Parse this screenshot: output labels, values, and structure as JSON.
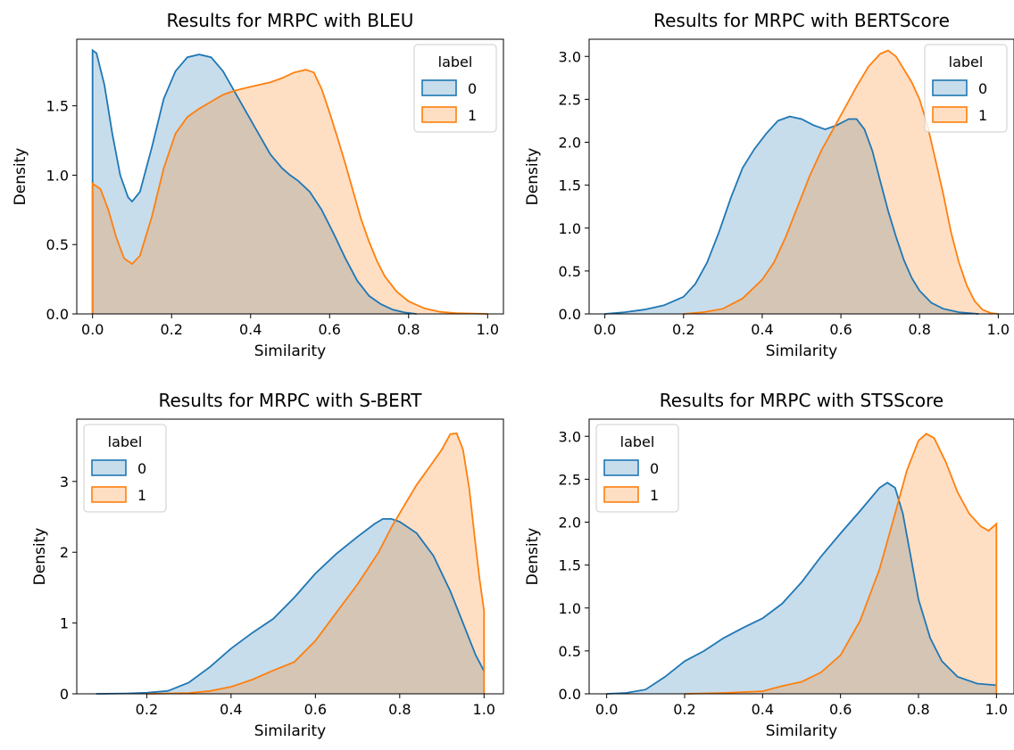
{
  "chart_data": [
    {
      "type": "area",
      "title": "Results for MRPC with BLEU",
      "xlabel": "Similarity",
      "ylabel": "Density",
      "xlim": [
        -0.04,
        1.04
      ],
      "ylim": [
        0,
        1.98
      ],
      "xticks": [
        0.0,
        0.2,
        0.4,
        0.6,
        0.8,
        1.0
      ],
      "xtick_labels": [
        "0.0",
        "0.2",
        "0.4",
        "0.6",
        "0.8",
        "1.0"
      ],
      "yticks": [
        0.0,
        0.5,
        1.0,
        1.5
      ],
      "ytick_labels": [
        "0.0",
        "0.5",
        "1.0",
        "1.5"
      ],
      "legend": {
        "title": "label",
        "position": "upper right",
        "entries": [
          "0",
          "1"
        ]
      },
      "series": [
        {
          "name": "0",
          "color": "#1f77b4",
          "points": [
            [
              0.0,
              0.0
            ],
            [
              0.0,
              1.9
            ],
            [
              0.01,
              1.88
            ],
            [
              0.03,
              1.65
            ],
            [
              0.05,
              1.3
            ],
            [
              0.07,
              1.0
            ],
            [
              0.09,
              0.84
            ],
            [
              0.1,
              0.81
            ],
            [
              0.12,
              0.88
            ],
            [
              0.15,
              1.2
            ],
            [
              0.18,
              1.55
            ],
            [
              0.21,
              1.75
            ],
            [
              0.24,
              1.85
            ],
            [
              0.27,
              1.87
            ],
            [
              0.3,
              1.85
            ],
            [
              0.33,
              1.75
            ],
            [
              0.36,
              1.6
            ],
            [
              0.39,
              1.45
            ],
            [
              0.42,
              1.3
            ],
            [
              0.45,
              1.15
            ],
            [
              0.48,
              1.05
            ],
            [
              0.5,
              1.0
            ],
            [
              0.52,
              0.96
            ],
            [
              0.55,
              0.88
            ],
            [
              0.58,
              0.75
            ],
            [
              0.61,
              0.58
            ],
            [
              0.64,
              0.4
            ],
            [
              0.67,
              0.24
            ],
            [
              0.7,
              0.13
            ],
            [
              0.73,
              0.07
            ],
            [
              0.76,
              0.03
            ],
            [
              0.79,
              0.01
            ],
            [
              0.82,
              0.0
            ]
          ]
        },
        {
          "name": "1",
          "color": "#ff7f0e",
          "points": [
            [
              0.0,
              0.0
            ],
            [
              0.0,
              0.94
            ],
            [
              0.02,
              0.9
            ],
            [
              0.04,
              0.75
            ],
            [
              0.06,
              0.55
            ],
            [
              0.08,
              0.4
            ],
            [
              0.1,
              0.36
            ],
            [
              0.12,
              0.42
            ],
            [
              0.15,
              0.7
            ],
            [
              0.18,
              1.05
            ],
            [
              0.21,
              1.3
            ],
            [
              0.24,
              1.42
            ],
            [
              0.27,
              1.48
            ],
            [
              0.3,
              1.53
            ],
            [
              0.33,
              1.58
            ],
            [
              0.36,
              1.61
            ],
            [
              0.39,
              1.63
            ],
            [
              0.42,
              1.65
            ],
            [
              0.45,
              1.67
            ],
            [
              0.48,
              1.7
            ],
            [
              0.51,
              1.74
            ],
            [
              0.54,
              1.76
            ],
            [
              0.56,
              1.74
            ],
            [
              0.58,
              1.62
            ],
            [
              0.6,
              1.45
            ],
            [
              0.62,
              1.27
            ],
            [
              0.64,
              1.08
            ],
            [
              0.66,
              0.88
            ],
            [
              0.68,
              0.68
            ],
            [
              0.7,
              0.52
            ],
            [
              0.72,
              0.38
            ],
            [
              0.74,
              0.27
            ],
            [
              0.77,
              0.16
            ],
            [
              0.8,
              0.09
            ],
            [
              0.84,
              0.04
            ],
            [
              0.88,
              0.015
            ],
            [
              0.92,
              0.005
            ],
            [
              1.0,
              0.0
            ]
          ]
        }
      ]
    },
    {
      "type": "area",
      "title": "Results for MRPC with BERTScore",
      "xlabel": "Similarity",
      "ylabel": "Density",
      "xlim": [
        -0.04,
        1.04
      ],
      "ylim": [
        0,
        3.2
      ],
      "xticks": [
        0.0,
        0.2,
        0.4,
        0.6,
        0.8,
        1.0
      ],
      "xtick_labels": [
        "0.0",
        "0.2",
        "0.4",
        "0.6",
        "0.8",
        "1.0"
      ],
      "yticks": [
        0.0,
        0.5,
        1.0,
        1.5,
        2.0,
        2.5,
        3.0
      ],
      "ytick_labels": [
        "0.0",
        "0.5",
        "1.0",
        "1.5",
        "2.0",
        "2.5",
        "3.0"
      ],
      "legend": {
        "title": "label",
        "position": "upper right",
        "entries": [
          "0",
          "1"
        ]
      },
      "series": [
        {
          "name": "0",
          "color": "#1f77b4",
          "points": [
            [
              0.0,
              0.0
            ],
            [
              0.05,
              0.02
            ],
            [
              0.1,
              0.05
            ],
            [
              0.15,
              0.1
            ],
            [
              0.2,
              0.2
            ],
            [
              0.23,
              0.35
            ],
            [
              0.26,
              0.6
            ],
            [
              0.29,
              0.95
            ],
            [
              0.32,
              1.35
            ],
            [
              0.35,
              1.7
            ],
            [
              0.38,
              1.92
            ],
            [
              0.41,
              2.1
            ],
            [
              0.44,
              2.25
            ],
            [
              0.47,
              2.3
            ],
            [
              0.5,
              2.27
            ],
            [
              0.53,
              2.2
            ],
            [
              0.56,
              2.15
            ],
            [
              0.59,
              2.2
            ],
            [
              0.62,
              2.27
            ],
            [
              0.64,
              2.27
            ],
            [
              0.66,
              2.15
            ],
            [
              0.68,
              1.9
            ],
            [
              0.7,
              1.55
            ],
            [
              0.72,
              1.2
            ],
            [
              0.74,
              0.9
            ],
            [
              0.76,
              0.63
            ],
            [
              0.78,
              0.42
            ],
            [
              0.8,
              0.27
            ],
            [
              0.83,
              0.13
            ],
            [
              0.86,
              0.06
            ],
            [
              0.9,
              0.02
            ],
            [
              0.95,
              0.0
            ]
          ]
        },
        {
          "name": "1",
          "color": "#ff7f0e",
          "points": [
            [
              0.2,
              0.0
            ],
            [
              0.25,
              0.02
            ],
            [
              0.3,
              0.06
            ],
            [
              0.35,
              0.18
            ],
            [
              0.4,
              0.4
            ],
            [
              0.43,
              0.6
            ],
            [
              0.46,
              0.9
            ],
            [
              0.49,
              1.25
            ],
            [
              0.52,
              1.6
            ],
            [
              0.55,
              1.9
            ],
            [
              0.58,
              2.15
            ],
            [
              0.61,
              2.4
            ],
            [
              0.64,
              2.65
            ],
            [
              0.67,
              2.88
            ],
            [
              0.7,
              3.03
            ],
            [
              0.72,
              3.07
            ],
            [
              0.74,
              3.0
            ],
            [
              0.76,
              2.85
            ],
            [
              0.78,
              2.7
            ],
            [
              0.8,
              2.5
            ],
            [
              0.82,
              2.2
            ],
            [
              0.84,
              1.8
            ],
            [
              0.86,
              1.4
            ],
            [
              0.88,
              0.95
            ],
            [
              0.9,
              0.6
            ],
            [
              0.92,
              0.33
            ],
            [
              0.94,
              0.15
            ],
            [
              0.96,
              0.05
            ],
            [
              0.98,
              0.01
            ],
            [
              1.0,
              0.0
            ]
          ]
        }
      ]
    },
    {
      "type": "area",
      "title": "Results for MRPC with S-BERT",
      "xlabel": "Similarity",
      "ylabel": "Density",
      "xlim": [
        0.034,
        1.046
      ],
      "ylim": [
        0,
        3.88
      ],
      "xticks": [
        0.2,
        0.4,
        0.6,
        0.8,
        1.0
      ],
      "xtick_labels": [
        "0.2",
        "0.4",
        "0.6",
        "0.8",
        "1.0"
      ],
      "yticks": [
        0,
        1,
        2,
        3
      ],
      "ytick_labels": [
        "0",
        "1",
        "2",
        "3"
      ],
      "legend": {
        "title": "label",
        "position": "upper left",
        "entries": [
          "0",
          "1"
        ]
      },
      "series": [
        {
          "name": "0",
          "color": "#1f77b4",
          "points": [
            [
              0.08,
              0.0
            ],
            [
              0.15,
              0.005
            ],
            [
              0.2,
              0.015
            ],
            [
              0.25,
              0.04
            ],
            [
              0.3,
              0.16
            ],
            [
              0.35,
              0.38
            ],
            [
              0.4,
              0.64
            ],
            [
              0.45,
              0.86
            ],
            [
              0.5,
              1.06
            ],
            [
              0.55,
              1.36
            ],
            [
              0.6,
              1.7
            ],
            [
              0.65,
              1.98
            ],
            [
              0.7,
              2.22
            ],
            [
              0.74,
              2.4
            ],
            [
              0.76,
              2.47
            ],
            [
              0.78,
              2.47
            ],
            [
              0.8,
              2.43
            ],
            [
              0.84,
              2.27
            ],
            [
              0.88,
              1.95
            ],
            [
              0.92,
              1.45
            ],
            [
              0.95,
              1.0
            ],
            [
              0.98,
              0.55
            ],
            [
              1.0,
              0.32
            ]
          ]
        },
        {
          "name": "1",
          "color": "#ff7f0e",
          "points": [
            [
              0.2,
              0.0
            ],
            [
              0.3,
              0.01
            ],
            [
              0.35,
              0.04
            ],
            [
              0.4,
              0.1
            ],
            [
              0.45,
              0.2
            ],
            [
              0.5,
              0.33
            ],
            [
              0.55,
              0.45
            ],
            [
              0.6,
              0.75
            ],
            [
              0.65,
              1.15
            ],
            [
              0.7,
              1.55
            ],
            [
              0.75,
              2.0
            ],
            [
              0.78,
              2.35
            ],
            [
              0.81,
              2.65
            ],
            [
              0.84,
              2.95
            ],
            [
              0.87,
              3.2
            ],
            [
              0.9,
              3.45
            ],
            [
              0.92,
              3.67
            ],
            [
              0.935,
              3.68
            ],
            [
              0.95,
              3.45
            ],
            [
              0.965,
              2.9
            ],
            [
              0.98,
              2.1
            ],
            [
              0.99,
              1.6
            ],
            [
              1.0,
              1.17
            ],
            [
              1.0,
              0.0
            ]
          ]
        }
      ]
    },
    {
      "type": "area",
      "title": "Results for MRPC with STSScore",
      "xlabel": "Similarity",
      "ylabel": "Density",
      "xlim": [
        -0.045,
        1.045
      ],
      "ylim": [
        0,
        3.2
      ],
      "xticks": [
        0.0,
        0.2,
        0.4,
        0.6,
        0.8,
        1.0
      ],
      "xtick_labels": [
        "0.0",
        "0.2",
        "0.4",
        "0.6",
        "0.8",
        "1.0"
      ],
      "yticks": [
        0.0,
        0.5,
        1.0,
        1.5,
        2.0,
        2.5,
        3.0
      ],
      "ytick_labels": [
        "0.0",
        "0.5",
        "1.0",
        "1.5",
        "2.0",
        "2.5",
        "3.0"
      ],
      "legend": {
        "title": "label",
        "position": "upper left",
        "entries": [
          "0",
          "1"
        ]
      },
      "series": [
        {
          "name": "0",
          "color": "#1f77b4",
          "points": [
            [
              0.0,
              0.0
            ],
            [
              0.05,
              0.01
            ],
            [
              0.1,
              0.05
            ],
            [
              0.15,
              0.2
            ],
            [
              0.2,
              0.38
            ],
            [
              0.25,
              0.5
            ],
            [
              0.3,
              0.65
            ],
            [
              0.35,
              0.77
            ],
            [
              0.4,
              0.88
            ],
            [
              0.45,
              1.05
            ],
            [
              0.5,
              1.3
            ],
            [
              0.55,
              1.6
            ],
            [
              0.6,
              1.87
            ],
            [
              0.65,
              2.13
            ],
            [
              0.7,
              2.4
            ],
            [
              0.72,
              2.46
            ],
            [
              0.74,
              2.4
            ],
            [
              0.76,
              2.1
            ],
            [
              0.78,
              1.6
            ],
            [
              0.8,
              1.1
            ],
            [
              0.83,
              0.65
            ],
            [
              0.86,
              0.38
            ],
            [
              0.9,
              0.2
            ],
            [
              0.95,
              0.12
            ],
            [
              1.0,
              0.1
            ]
          ]
        },
        {
          "name": "1",
          "color": "#ff7f0e",
          "points": [
            [
              0.2,
              0.0
            ],
            [
              0.3,
              0.01
            ],
            [
              0.4,
              0.03
            ],
            [
              0.45,
              0.09
            ],
            [
              0.5,
              0.14
            ],
            [
              0.55,
              0.25
            ],
            [
              0.6,
              0.45
            ],
            [
              0.65,
              0.85
            ],
            [
              0.7,
              1.45
            ],
            [
              0.74,
              2.1
            ],
            [
              0.77,
              2.6
            ],
            [
              0.8,
              2.95
            ],
            [
              0.82,
              3.03
            ],
            [
              0.84,
              2.98
            ],
            [
              0.87,
              2.7
            ],
            [
              0.9,
              2.35
            ],
            [
              0.93,
              2.1
            ],
            [
              0.96,
              1.95
            ],
            [
              0.98,
              1.9
            ],
            [
              1.0,
              1.98
            ],
            [
              1.0,
              0.0
            ]
          ]
        }
      ]
    }
  ]
}
